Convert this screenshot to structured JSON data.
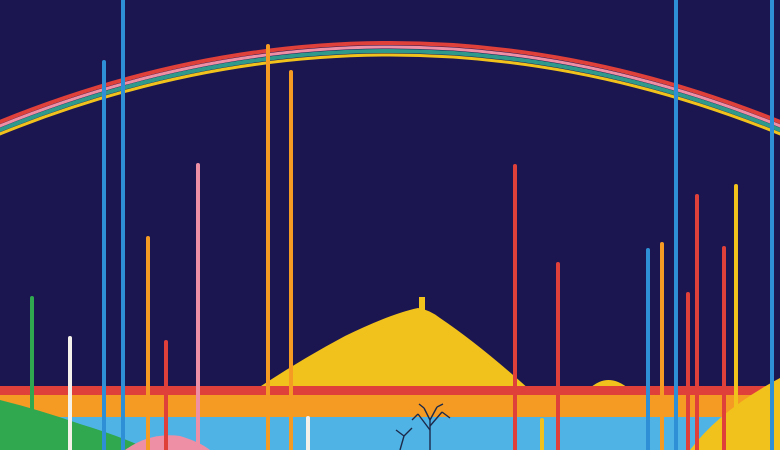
{
  "artwork": {
    "palette": {
      "sky": "#1c1650",
      "red": "#e0403a",
      "pink": "#ee8fa6",
      "teal": "#2f9a8c",
      "yellow": "#f2c21c",
      "orange": "#f59a23",
      "blue": "#2e8fd6",
      "green": "#2fa84f",
      "white": "#f4f1ea",
      "light_blue": "#4fb3e6",
      "dark_tree": "#1c2a4a"
    },
    "elements": {
      "rainbow": "rainbow-arc",
      "hill": "yellow-hill",
      "tower": "hilltop-tower",
      "stripes": [
        "red-horizon-stripe",
        "orange-band",
        "light-blue-field"
      ],
      "foreground": [
        "green-slope",
        "pink-patch",
        "yellow-corner-hill",
        "bare-tree"
      ],
      "drips": "vertical-paint-drips"
    }
  }
}
